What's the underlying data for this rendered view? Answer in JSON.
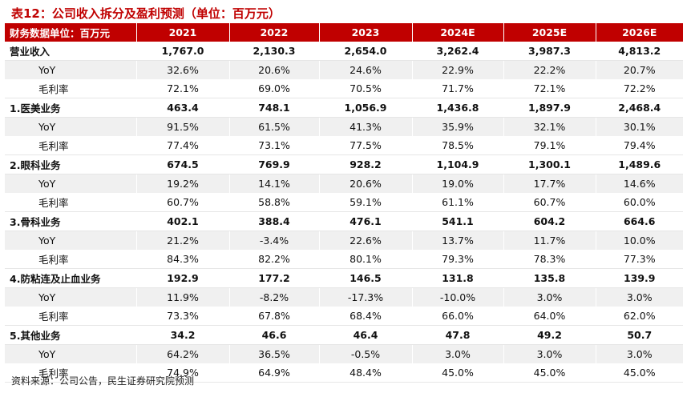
{
  "title": "表12：公司收入拆分及盈利预测（单位：百万元）",
  "header": [
    "财务数据单位：百万元",
    "2021",
    "2022",
    "2023",
    "2024E",
    "2025E",
    "2026E"
  ],
  "rows": [
    {
      "type": "main",
      "label": "营业收入",
      "values": [
        "1,767.0",
        "2,130.3",
        "2,654.0",
        "3,262.4",
        "3,987.3",
        "4,813.2"
      ]
    },
    {
      "type": "sub",
      "label": "YoY",
      "values": [
        "32.6%",
        "20.6%",
        "24.6%",
        "22.9%",
        "22.2%",
        "20.7%"
      ]
    },
    {
      "type": "sub",
      "label": "毛利率",
      "values": [
        "72.1%",
        "69.0%",
        "70.5%",
        "71.7%",
        "72.1%",
        "72.2%"
      ]
    },
    {
      "type": "main",
      "label": "1.医美业务",
      "values": [
        "463.4",
        "748.1",
        "1,056.9",
        "1,436.8",
        "1,897.9",
        "2,468.4"
      ]
    },
    {
      "type": "sub",
      "label": "YoY",
      "values": [
        "91.5%",
        "61.5%",
        "41.3%",
        "35.9%",
        "32.1%",
        "30.1%"
      ]
    },
    {
      "type": "sub",
      "label": "毛利率",
      "values": [
        "77.4%",
        "73.1%",
        "77.5%",
        "78.5%",
        "79.1%",
        "79.4%"
      ]
    },
    {
      "type": "main",
      "label": "2.眼科业务",
      "values": [
        "674.5",
        "769.9",
        "928.2",
        "1,104.9",
        "1,300.1",
        "1,489.6"
      ]
    },
    {
      "type": "sub",
      "label": "YoY",
      "values": [
        "19.2%",
        "14.1%",
        "20.6%",
        "19.0%",
        "17.7%",
        "14.6%"
      ]
    },
    {
      "type": "sub",
      "label": "毛利率",
      "values": [
        "60.7%",
        "58.8%",
        "59.1%",
        "61.1%",
        "60.7%",
        "60.0%"
      ]
    },
    {
      "type": "main",
      "label": "3.骨科业务",
      "values": [
        "402.1",
        "388.4",
        "476.1",
        "541.1",
        "604.2",
        "664.6"
      ]
    },
    {
      "type": "sub",
      "label": "YoY",
      "values": [
        "21.2%",
        "-3.4%",
        "22.6%",
        "13.7%",
        "11.7%",
        "10.0%"
      ]
    },
    {
      "type": "sub",
      "label": "毛利率",
      "values": [
        "84.3%",
        "82.2%",
        "80.1%",
        "79.3%",
        "78.3%",
        "77.3%"
      ]
    },
    {
      "type": "main",
      "label": "4.防粘连及止血业务",
      "values": [
        "192.9",
        "177.2",
        "146.5",
        "131.8",
        "135.8",
        "139.9"
      ]
    },
    {
      "type": "sub",
      "label": "YoY",
      "values": [
        "11.9%",
        "-8.2%",
        "-17.3%",
        "-10.0%",
        "3.0%",
        "3.0%"
      ]
    },
    {
      "type": "sub",
      "label": "毛利率",
      "values": [
        "73.3%",
        "67.8%",
        "68.4%",
        "66.0%",
        "64.0%",
        "62.0%"
      ]
    },
    {
      "type": "main",
      "label": "5.其他业务",
      "values": [
        "34.2",
        "46.6",
        "46.4",
        "47.8",
        "49.2",
        "50.7"
      ]
    },
    {
      "type": "sub",
      "label": "YoY",
      "values": [
        "64.2%",
        "36.5%",
        "-0.5%",
        "3.0%",
        "3.0%",
        "3.0%"
      ]
    },
    {
      "type": "sub",
      "label": "毛利率",
      "values": [
        "74.9%",
        "64.9%",
        "48.4%",
        "45.0%",
        "45.0%",
        "45.0%"
      ]
    }
  ],
  "source": "资料来源：公司公告，民生证券研究院预测",
  "colors": {
    "accent": "#c00000",
    "stripe": "#f0f0f0"
  }
}
